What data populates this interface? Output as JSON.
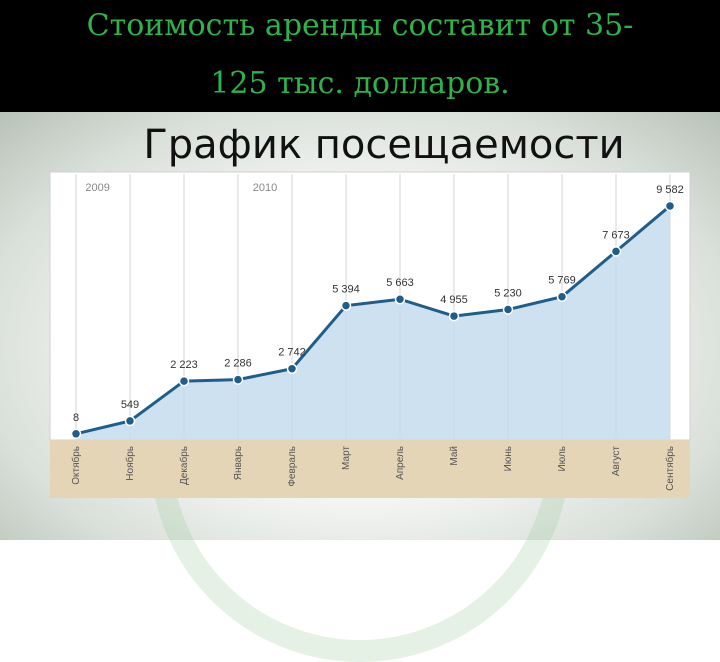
{
  "header": {
    "line1": "Стоимость аренды составит от 35-",
    "line2": "125 тыс. долларов."
  },
  "chart_data": {
    "type": "area",
    "title": "График посещаемости",
    "year_labels": [
      {
        "label": "2009",
        "index": 0.4
      },
      {
        "label": "2010",
        "index": 3.5
      }
    ],
    "categories": [
      "Октябрь",
      "Ноябрь",
      "Декабрь",
      "Январь",
      "Февраль",
      "Март",
      "Апрель",
      "Май",
      "Июнь",
      "Июль",
      "Август",
      "Сентябрь"
    ],
    "values": [
      8,
      549,
      2223,
      2286,
      2742,
      5394,
      5663,
      4955,
      5230,
      5769,
      7673,
      9582
    ],
    "value_labels": [
      "8",
      "549",
      "2 223",
      "2 286",
      "2 742",
      "5 394",
      "5 663",
      "4 955",
      "5 230",
      "5 769",
      "7 673",
      "9 582"
    ],
    "ylim": [
      0,
      10000
    ],
    "grid": "vertical",
    "colors": {
      "line": "#1f5e8a",
      "fill": "#c6dcee",
      "axis_band": "#e4d5b6"
    }
  }
}
